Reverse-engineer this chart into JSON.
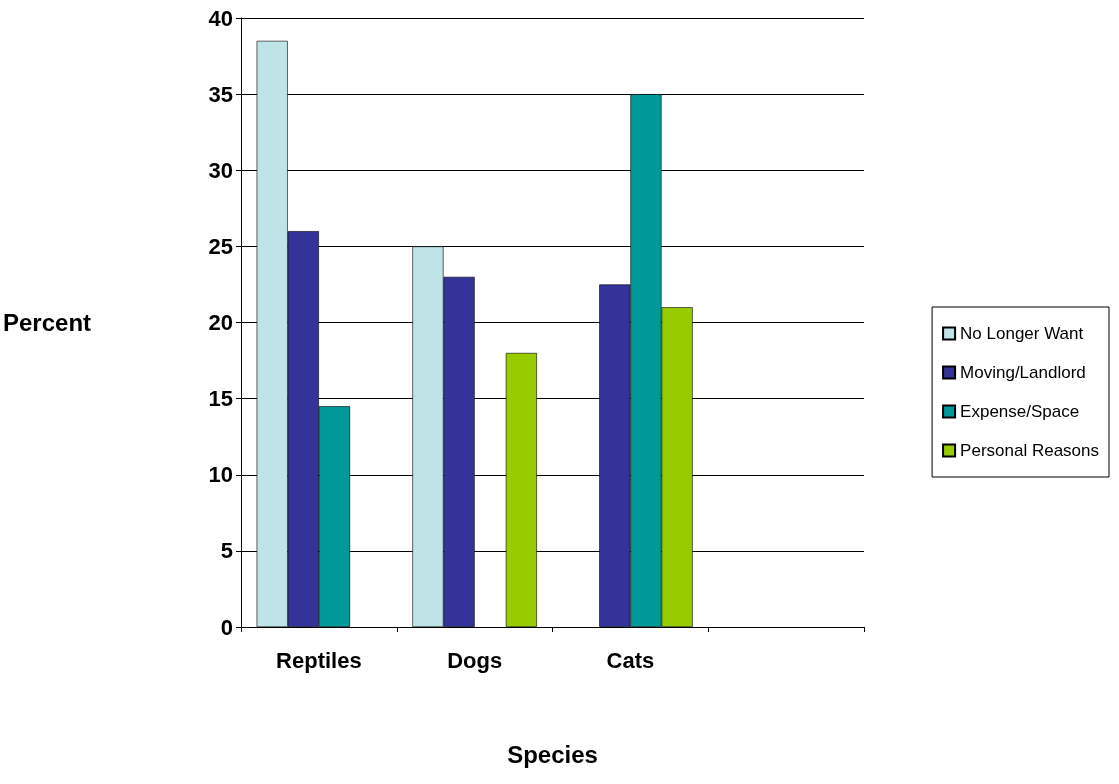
{
  "chart_data": {
    "type": "bar",
    "xlabel": "Species",
    "ylabel": "Percent",
    "categories": [
      "Reptiles",
      "Dogs",
      "Cats",
      null
    ],
    "series": [
      {
        "name": "No Longer Want",
        "color": "#bfe3e6",
        "values": [
          38.5,
          25,
          null,
          null
        ]
      },
      {
        "name": "Moving/Landlord",
        "color": "#333399",
        "values": [
          26,
          23,
          22.5,
          null
        ]
      },
      {
        "name": "Expense/Space",
        "color": "#009999",
        "values": [
          14.5,
          null,
          35,
          null
        ]
      },
      {
        "name": "Personal Reasons",
        "color": "#99cc00",
        "values": [
          null,
          18,
          21,
          null
        ]
      }
    ],
    "ylim": [
      0,
      40
    ],
    "yticks": [
      0,
      5,
      10,
      15,
      20,
      25,
      30,
      35,
      40
    ],
    "grid": "y",
    "legend": "right"
  }
}
